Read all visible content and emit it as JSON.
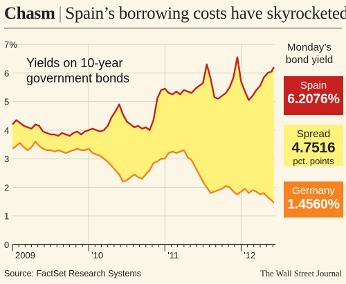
{
  "header": {
    "title_bold": "Chasm",
    "separator": "|",
    "title_rest": "Spain’s borrowing costs have skyrocketed"
  },
  "chart_data": {
    "type": "line",
    "title": "Yields on 10-year government bonds",
    "ylim": [
      0,
      7
    ],
    "y_ticks": [
      "0",
      "1",
      "2",
      "3",
      "4",
      "5",
      "6",
      "7%"
    ],
    "x_ticks": [
      "2009",
      "'10",
      "'11",
      "'12"
    ],
    "xlim": [
      2009.0,
      2012.45
    ],
    "grid": true,
    "series": [
      {
        "name": "Spain",
        "color": "#c8201f",
        "x": [
          2009.0,
          2009.05,
          2009.1,
          2009.15,
          2009.2,
          2009.25,
          2009.3,
          2009.35,
          2009.4,
          2009.45,
          2009.5,
          2009.55,
          2009.6,
          2009.65,
          2009.7,
          2009.75,
          2009.8,
          2009.85,
          2009.9,
          2009.95,
          2010.0,
          2010.05,
          2010.1,
          2010.15,
          2010.2,
          2010.25,
          2010.3,
          2010.35,
          2010.4,
          2010.45,
          2010.5,
          2010.55,
          2010.6,
          2010.65,
          2010.7,
          2010.75,
          2010.8,
          2010.85,
          2010.9,
          2010.95,
          2011.0,
          2011.05,
          2011.1,
          2011.15,
          2011.2,
          2011.25,
          2011.3,
          2011.35,
          2011.4,
          2011.45,
          2011.5,
          2011.55,
          2011.6,
          2011.65,
          2011.7,
          2011.75,
          2011.8,
          2011.85,
          2011.9,
          2011.95,
          2012.0,
          2012.05,
          2012.1,
          2012.15,
          2012.2,
          2012.25,
          2012.3,
          2012.35,
          2012.4,
          2012.43
        ],
        "values": [
          4.2,
          4.35,
          4.25,
          4.15,
          4.1,
          4.05,
          4.2,
          4.15,
          3.95,
          3.9,
          3.85,
          3.85,
          3.8,
          3.9,
          3.85,
          3.8,
          3.9,
          3.95,
          3.85,
          3.95,
          4.0,
          4.05,
          4.0,
          3.95,
          4.0,
          4.15,
          4.45,
          4.65,
          4.9,
          4.55,
          4.3,
          4.2,
          4.1,
          4.15,
          4.05,
          4.1,
          4.0,
          4.35,
          5.1,
          5.4,
          5.45,
          5.3,
          5.25,
          5.35,
          5.25,
          5.4,
          5.35,
          5.3,
          5.45,
          5.55,
          5.65,
          6.3,
          5.8,
          5.15,
          5.1,
          5.2,
          5.3,
          5.5,
          5.85,
          6.55,
          5.7,
          5.35,
          5.05,
          5.2,
          5.4,
          5.55,
          5.85,
          6.0,
          6.05,
          6.2076
        ]
      },
      {
        "name": "Germany",
        "color": "#f58320",
        "x": [
          2009.0,
          2009.05,
          2009.1,
          2009.15,
          2009.2,
          2009.25,
          2009.3,
          2009.35,
          2009.4,
          2009.45,
          2009.5,
          2009.55,
          2009.6,
          2009.65,
          2009.7,
          2009.75,
          2009.8,
          2009.85,
          2009.9,
          2009.95,
          2010.0,
          2010.05,
          2010.1,
          2010.15,
          2010.2,
          2010.25,
          2010.3,
          2010.35,
          2010.4,
          2010.45,
          2010.5,
          2010.55,
          2010.6,
          2010.65,
          2010.7,
          2010.75,
          2010.8,
          2010.85,
          2010.9,
          2010.95,
          2011.0,
          2011.05,
          2011.1,
          2011.15,
          2011.2,
          2011.25,
          2011.3,
          2011.35,
          2011.4,
          2011.45,
          2011.5,
          2011.55,
          2011.6,
          2011.65,
          2011.7,
          2011.75,
          2011.8,
          2011.85,
          2011.9,
          2011.95,
          2012.0,
          2012.05,
          2012.1,
          2012.15,
          2012.2,
          2012.25,
          2012.3,
          2012.35,
          2012.4,
          2012.43
        ],
        "values": [
          3.35,
          3.45,
          3.55,
          3.4,
          3.3,
          3.4,
          3.6,
          3.45,
          3.35,
          3.3,
          3.3,
          3.25,
          3.3,
          3.25,
          3.2,
          3.25,
          3.3,
          3.35,
          3.3,
          3.3,
          3.35,
          3.2,
          3.15,
          3.1,
          3.0,
          2.9,
          2.75,
          2.6,
          2.45,
          2.2,
          2.25,
          2.35,
          2.45,
          2.35,
          2.3,
          2.45,
          2.6,
          2.85,
          2.9,
          3.0,
          3.0,
          3.2,
          3.25,
          3.2,
          3.25,
          3.3,
          3.05,
          2.95,
          2.7,
          2.45,
          2.2,
          2.0,
          1.8,
          1.85,
          1.9,
          1.95,
          2.05,
          2.0,
          1.85,
          1.75,
          1.85,
          1.95,
          1.8,
          1.9,
          1.85,
          1.75,
          1.8,
          1.65,
          1.55,
          1.456
        ]
      }
    ],
    "annotation": "Yields on 10-year government bonds"
  },
  "readout": {
    "heading": "Monday’s bond yield",
    "spain": {
      "label": "Spain",
      "value": "6.2076%",
      "color": "#c8201f"
    },
    "spread": {
      "label": "Spread",
      "value": "4.7516",
      "unit": "pct. points",
      "color": "#fff27a"
    },
    "germany": {
      "label": "Germany",
      "value": "1.4560%",
      "color": "#f58320"
    }
  },
  "footer": {
    "source": "Source: FactSet Research Systems",
    "credit": "The Wall Street Journal"
  }
}
